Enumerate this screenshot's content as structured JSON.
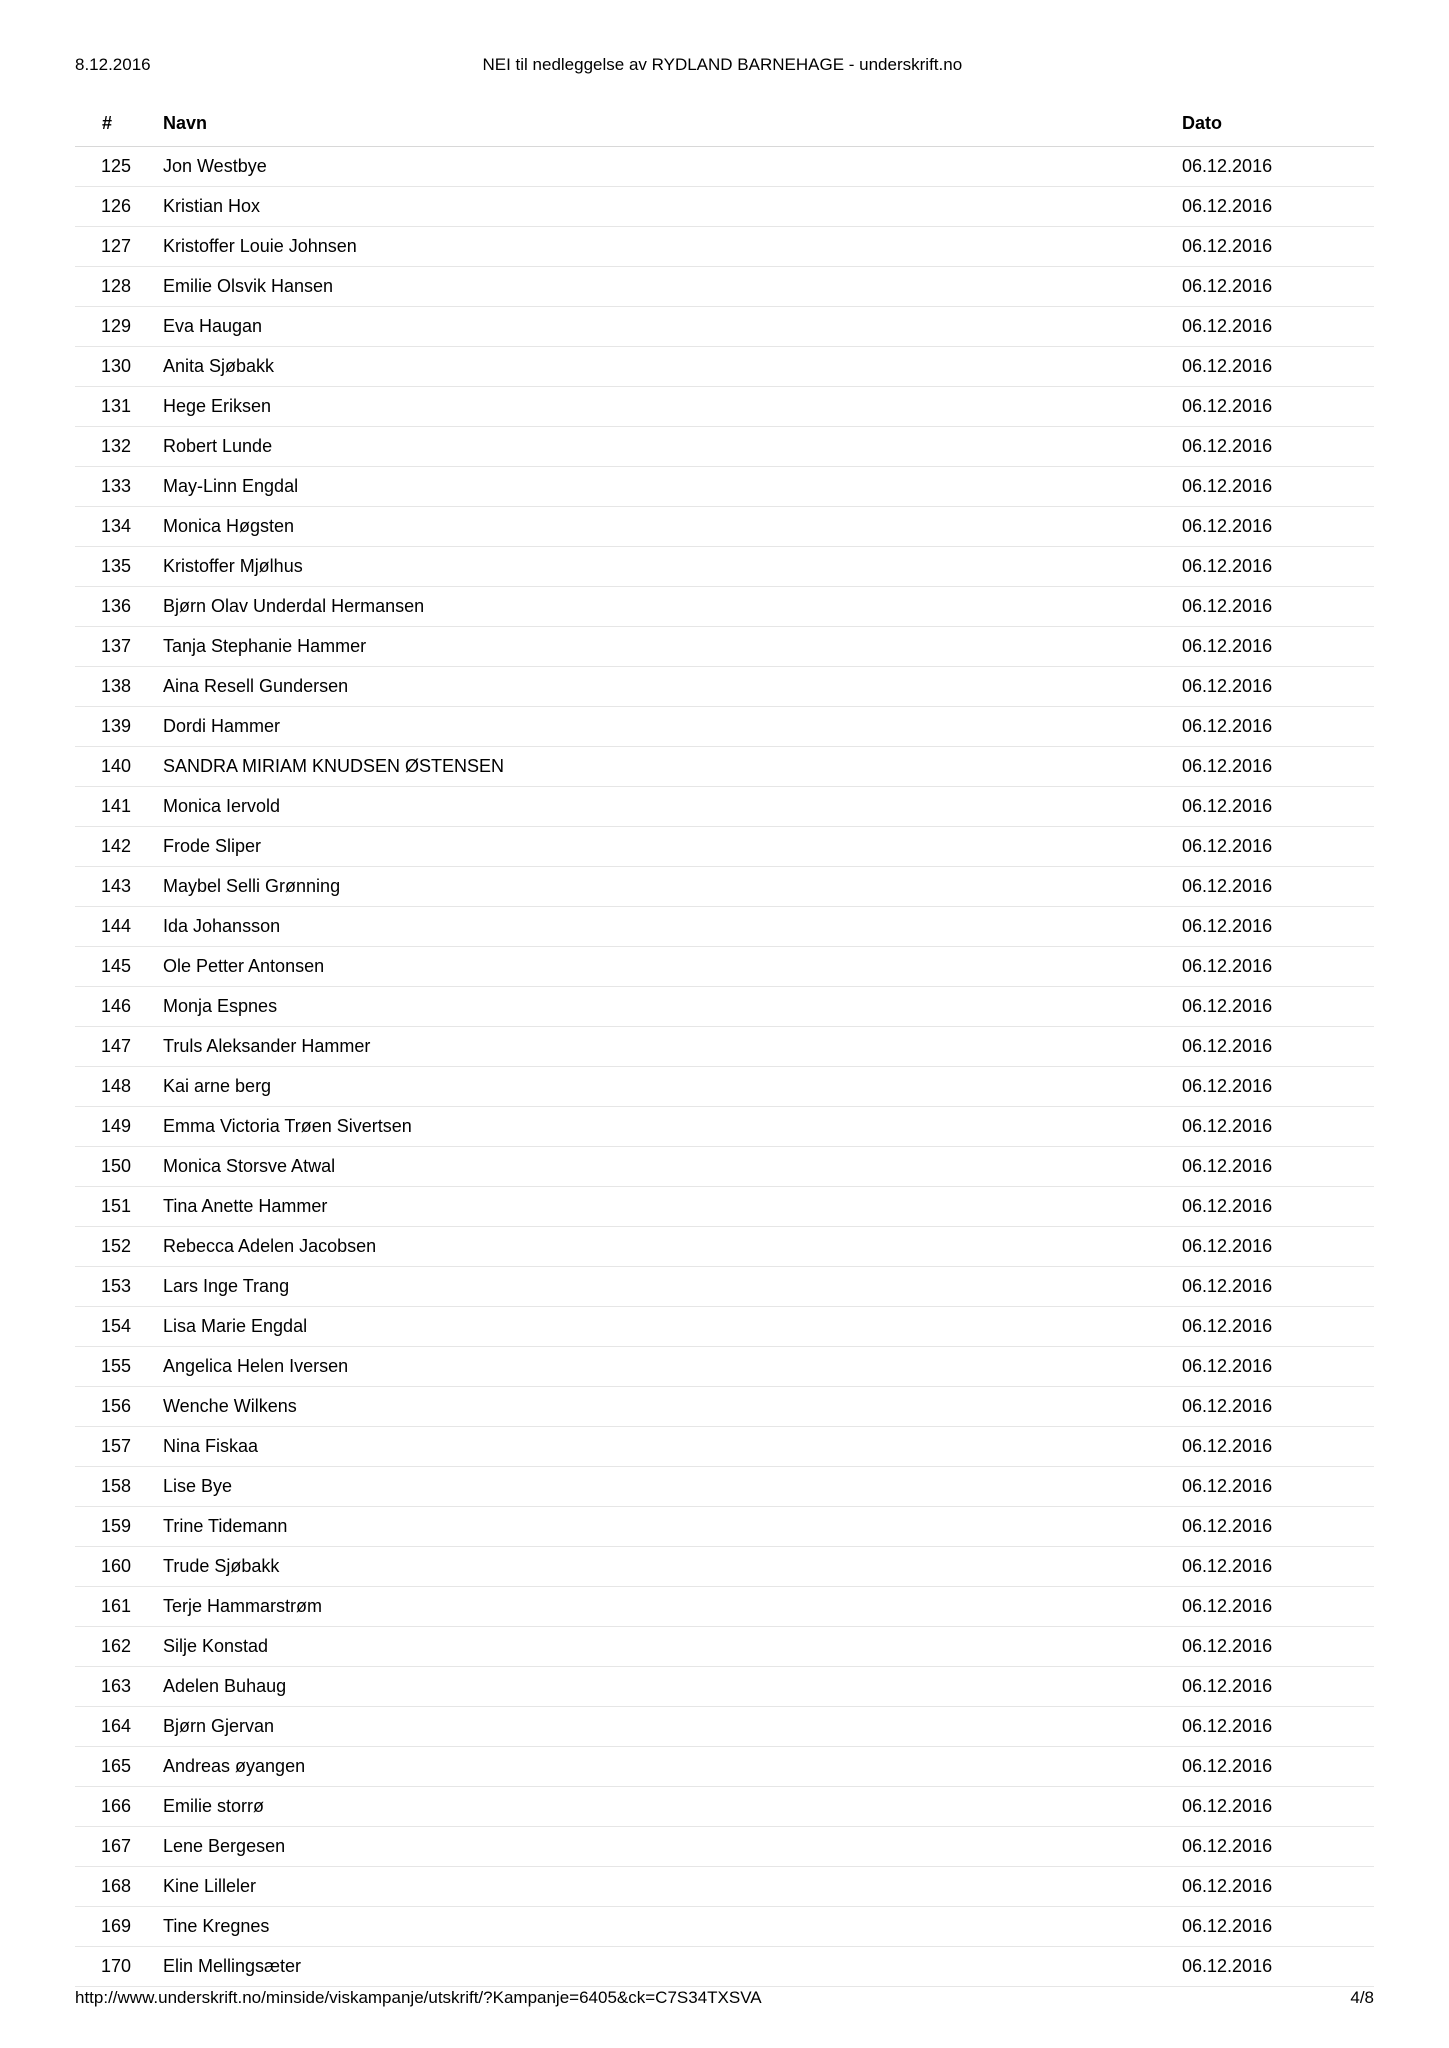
{
  "header": {
    "date_printed": "8.12.2016",
    "title": "NEI til nedleggelse av RYDLAND BARNEHAGE - underskrift.no"
  },
  "table": {
    "columns": {
      "num": "#",
      "name": "Navn",
      "date": "Dato"
    },
    "rows": [
      {
        "n": "125",
        "name": "Jon Westbye",
        "date": "06.12.2016"
      },
      {
        "n": "126",
        "name": "Kristian Hox",
        "date": "06.12.2016"
      },
      {
        "n": "127",
        "name": "Kristoffer Louie Johnsen",
        "date": "06.12.2016"
      },
      {
        "n": "128",
        "name": "Emilie Olsvik Hansen",
        "date": "06.12.2016"
      },
      {
        "n": "129",
        "name": "Eva Haugan",
        "date": "06.12.2016"
      },
      {
        "n": "130",
        "name": "Anita Sjøbakk",
        "date": "06.12.2016"
      },
      {
        "n": "131",
        "name": "Hege Eriksen",
        "date": "06.12.2016"
      },
      {
        "n": "132",
        "name": "Robert Lunde",
        "date": "06.12.2016"
      },
      {
        "n": "133",
        "name": "May-Linn Engdal",
        "date": "06.12.2016"
      },
      {
        "n": "134",
        "name": "Monica Høgsten",
        "date": "06.12.2016"
      },
      {
        "n": "135",
        "name": "Kristoffer Mjølhus",
        "date": "06.12.2016"
      },
      {
        "n": "136",
        "name": "Bjørn Olav Underdal Hermansen",
        "date": "06.12.2016"
      },
      {
        "n": "137",
        "name": "Tanja Stephanie Hammer",
        "date": "06.12.2016"
      },
      {
        "n": "138",
        "name": "Aina Resell Gundersen",
        "date": "06.12.2016"
      },
      {
        "n": "139",
        "name": "Dordi Hammer",
        "date": "06.12.2016"
      },
      {
        "n": "140",
        "name": "SANDRA MIRIAM KNUDSEN ØSTENSEN",
        "date": "06.12.2016"
      },
      {
        "n": "141",
        "name": "Monica Iervold",
        "date": "06.12.2016"
      },
      {
        "n": "142",
        "name": "Frode Sliper",
        "date": "06.12.2016"
      },
      {
        "n": "143",
        "name": "Maybel Selli Grønning",
        "date": "06.12.2016"
      },
      {
        "n": "144",
        "name": "Ida Johansson",
        "date": "06.12.2016"
      },
      {
        "n": "145",
        "name": "Ole Petter Antonsen",
        "date": "06.12.2016"
      },
      {
        "n": "146",
        "name": "Monja Espnes",
        "date": "06.12.2016"
      },
      {
        "n": "147",
        "name": "Truls Aleksander Hammer",
        "date": "06.12.2016"
      },
      {
        "n": "148",
        "name": "Kai arne berg",
        "date": "06.12.2016"
      },
      {
        "n": "149",
        "name": "Emma Victoria Trøen Sivertsen",
        "date": "06.12.2016"
      },
      {
        "n": "150",
        "name": "Monica Storsve Atwal",
        "date": "06.12.2016"
      },
      {
        "n": "151",
        "name": "Tina Anette Hammer",
        "date": "06.12.2016"
      },
      {
        "n": "152",
        "name": "Rebecca Adelen Jacobsen",
        "date": "06.12.2016"
      },
      {
        "n": "153",
        "name": "Lars Inge Trang",
        "date": "06.12.2016"
      },
      {
        "n": "154",
        "name": "Lisa Marie Engdal",
        "date": "06.12.2016"
      },
      {
        "n": "155",
        "name": "Angelica Helen Iversen",
        "date": "06.12.2016"
      },
      {
        "n": "156",
        "name": "Wenche Wilkens",
        "date": "06.12.2016"
      },
      {
        "n": "157",
        "name": "Nina Fiskaa",
        "date": "06.12.2016"
      },
      {
        "n": "158",
        "name": "Lise Bye",
        "date": "06.12.2016"
      },
      {
        "n": "159",
        "name": "Trine Tidemann",
        "date": "06.12.2016"
      },
      {
        "n": "160",
        "name": "Trude Sjøbakk",
        "date": "06.12.2016"
      },
      {
        "n": "161",
        "name": "Terje Hammarstrøm",
        "date": "06.12.2016"
      },
      {
        "n": "162",
        "name": "Silje Konstad",
        "date": "06.12.2016"
      },
      {
        "n": "163",
        "name": "Adelen Buhaug",
        "date": "06.12.2016"
      },
      {
        "n": "164",
        "name": "Bjørn Gjervan",
        "date": "06.12.2016"
      },
      {
        "n": "165",
        "name": "Andreas øyangen",
        "date": "06.12.2016"
      },
      {
        "n": "166",
        "name": "Emilie storrø",
        "date": "06.12.2016"
      },
      {
        "n": "167",
        "name": "Lene Bergesen",
        "date": "06.12.2016"
      },
      {
        "n": "168",
        "name": "Kine Lilleler",
        "date": "06.12.2016"
      },
      {
        "n": "169",
        "name": "Tine Kregnes",
        "date": "06.12.2016"
      },
      {
        "n": "170",
        "name": "Elin Mellingsæter",
        "date": "06.12.2016"
      }
    ]
  },
  "footer": {
    "url": "http://www.underskrift.no/minside/viskampanje/utskrift/?Kampanje=6405&ck=C7S34TXSVA",
    "page": "4/8"
  }
}
